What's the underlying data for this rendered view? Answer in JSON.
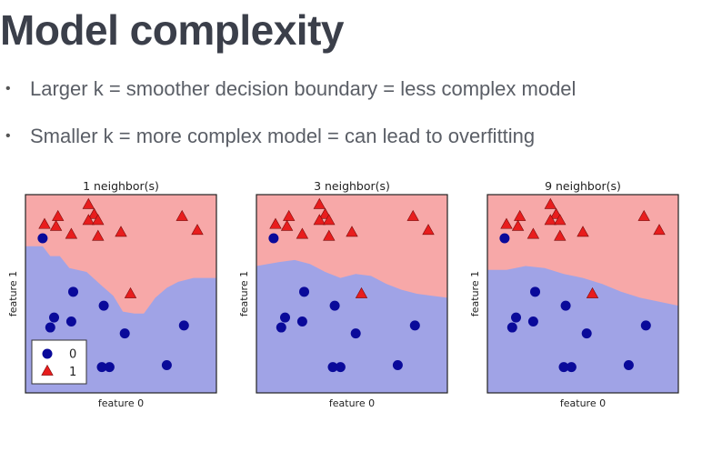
{
  "slide": {
    "title": "Model complexity",
    "bullets": [
      "Larger k = smoother decision boundary = less complex model",
      "Smaller k = more complex model = can lead to overfitting"
    ]
  },
  "colors": {
    "class_0_region": "#a0a3e6",
    "class_1_region": "#f7a8a8",
    "class_0_marker": "#0a0a9a",
    "class_1_marker": "#e81d1d",
    "text": "#3b3f4a"
  },
  "chart_data": [
    {
      "type": "scatter",
      "title": "1 neighbor(s)",
      "xlabel": "feature 0",
      "ylabel": "feature 1",
      "xlim": [
        0,
        10
      ],
      "ylim": [
        0,
        10
      ],
      "legend": {
        "placement": "bottom-left",
        "entries": [
          "0",
          "1"
        ]
      },
      "boundary": [
        [
          0,
          7.4
        ],
        [
          0.9,
          7.4
        ],
        [
          1.3,
          6.9
        ],
        [
          1.8,
          6.9
        ],
        [
          2.3,
          6.3
        ],
        [
          3.2,
          6.1
        ],
        [
          4.0,
          5.4
        ],
        [
          4.6,
          4.9
        ],
        [
          5.1,
          4.1
        ],
        [
          5.7,
          4.0
        ],
        [
          6.2,
          4.0
        ],
        [
          6.8,
          4.8
        ],
        [
          7.4,
          5.3
        ],
        [
          8.0,
          5.6
        ],
        [
          8.8,
          5.8
        ],
        [
          10,
          5.8
        ]
      ],
      "series": [
        {
          "class": "0",
          "points": [
            [
              0.9,
              7.8
            ],
            [
              2.5,
              5.1
            ],
            [
              1.5,
              3.8
            ],
            [
              2.4,
              3.6
            ],
            [
              1.3,
              3.3
            ],
            [
              4.1,
              4.4
            ],
            [
              5.2,
              3.0
            ],
            [
              8.3,
              3.4
            ],
            [
              4.0,
              1.3
            ],
            [
              4.4,
              1.3
            ],
            [
              7.4,
              1.4
            ]
          ]
        },
        {
          "class": "1",
          "points": [
            [
              1.0,
              8.5
            ],
            [
              1.7,
              8.9
            ],
            [
              1.6,
              8.4
            ],
            [
              2.4,
              8.0
            ],
            [
              3.3,
              9.5
            ],
            [
              3.6,
              9.0
            ],
            [
              3.3,
              8.7
            ],
            [
              3.8,
              8.7
            ],
            [
              3.8,
              7.9
            ],
            [
              5.0,
              8.1
            ],
            [
              8.2,
              8.9
            ],
            [
              9.0,
              8.2
            ],
            [
              5.5,
              5.0
            ]
          ]
        }
      ]
    },
    {
      "type": "scatter",
      "title": "3 neighbor(s)",
      "xlabel": "feature 0",
      "ylabel": "feature 1",
      "xlim": [
        0,
        10
      ],
      "ylim": [
        0,
        10
      ],
      "boundary": [
        [
          0,
          6.4
        ],
        [
          1.2,
          6.6
        ],
        [
          2.0,
          6.7
        ],
        [
          2.8,
          6.5
        ],
        [
          3.6,
          6.1
        ],
        [
          4.4,
          5.8
        ],
        [
          5.2,
          6.0
        ],
        [
          6.0,
          5.9
        ],
        [
          6.8,
          5.5
        ],
        [
          7.6,
          5.2
        ],
        [
          8.4,
          5.0
        ],
        [
          9.2,
          4.9
        ],
        [
          10,
          4.8
        ]
      ],
      "series": [
        {
          "class": "0",
          "points": [
            [
              0.9,
              7.8
            ],
            [
              2.5,
              5.1
            ],
            [
              1.5,
              3.8
            ],
            [
              2.4,
              3.6
            ],
            [
              1.3,
              3.3
            ],
            [
              4.1,
              4.4
            ],
            [
              5.2,
              3.0
            ],
            [
              8.3,
              3.4
            ],
            [
              4.0,
              1.3
            ],
            [
              4.4,
              1.3
            ],
            [
              7.4,
              1.4
            ]
          ]
        },
        {
          "class": "1",
          "points": [
            [
              1.0,
              8.5
            ],
            [
              1.7,
              8.9
            ],
            [
              1.6,
              8.4
            ],
            [
              2.4,
              8.0
            ],
            [
              3.3,
              9.5
            ],
            [
              3.6,
              9.0
            ],
            [
              3.3,
              8.7
            ],
            [
              3.8,
              8.7
            ],
            [
              3.8,
              7.9
            ],
            [
              5.0,
              8.1
            ],
            [
              8.2,
              8.9
            ],
            [
              9.0,
              8.2
            ],
            [
              5.5,
              5.0
            ]
          ]
        }
      ]
    },
    {
      "type": "scatter",
      "title": "9 neighbor(s)",
      "xlabel": "feature 0",
      "ylabel": "feature 1",
      "xlim": [
        0,
        10
      ],
      "ylim": [
        0,
        10
      ],
      "boundary": [
        [
          0,
          6.2
        ],
        [
          1.0,
          6.2
        ],
        [
          2.0,
          6.4
        ],
        [
          3.0,
          6.3
        ],
        [
          4.0,
          6.0
        ],
        [
          5.0,
          5.8
        ],
        [
          6.0,
          5.5
        ],
        [
          7.0,
          5.1
        ],
        [
          8.0,
          4.8
        ],
        [
          9.0,
          4.6
        ],
        [
          10,
          4.4
        ]
      ],
      "series": [
        {
          "class": "0",
          "points": [
            [
              0.9,
              7.8
            ],
            [
              2.5,
              5.1
            ],
            [
              1.5,
              3.8
            ],
            [
              2.4,
              3.6
            ],
            [
              1.3,
              3.3
            ],
            [
              4.1,
              4.4
            ],
            [
              5.2,
              3.0
            ],
            [
              8.3,
              3.4
            ],
            [
              4.0,
              1.3
            ],
            [
              4.4,
              1.3
            ],
            [
              7.4,
              1.4
            ]
          ]
        },
        {
          "class": "1",
          "points": [
            [
              1.0,
              8.5
            ],
            [
              1.7,
              8.9
            ],
            [
              1.6,
              8.4
            ],
            [
              2.4,
              8.0
            ],
            [
              3.3,
              9.5
            ],
            [
              3.6,
              9.0
            ],
            [
              3.3,
              8.7
            ],
            [
              3.8,
              8.7
            ],
            [
              3.8,
              7.9
            ],
            [
              5.0,
              8.1
            ],
            [
              8.2,
              8.9
            ],
            [
              9.0,
              8.2
            ],
            [
              5.5,
              5.0
            ]
          ]
        }
      ]
    }
  ]
}
